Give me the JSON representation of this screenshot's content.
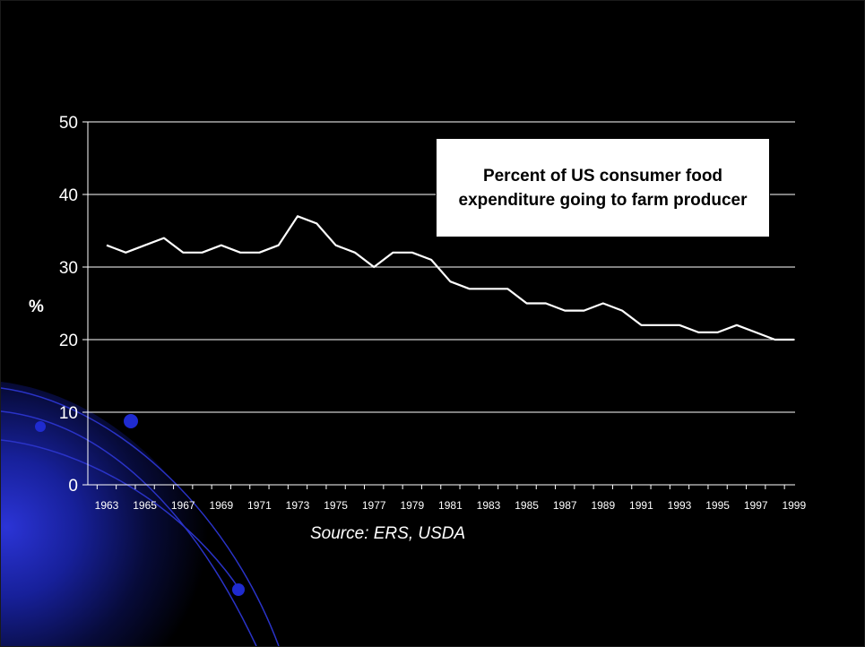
{
  "chart_data": {
    "type": "line",
    "title": "Percent of US consumer food expenditure going to farm producer",
    "xlabel": "",
    "ylabel": "%",
    "source": "Source: ERS, USDA",
    "x": [
      1963,
      1964,
      1965,
      1966,
      1967,
      1968,
      1969,
      1970,
      1971,
      1972,
      1973,
      1974,
      1975,
      1976,
      1977,
      1978,
      1979,
      1980,
      1981,
      1982,
      1983,
      1984,
      1985,
      1986,
      1987,
      1988,
      1989,
      1990,
      1991,
      1992,
      1993,
      1994,
      1995,
      1996,
      1997,
      1998,
      1999
    ],
    "x_tick_labels": [
      "1963",
      "1965",
      "1967",
      "1969",
      "1971",
      "1973",
      "1975",
      "1977",
      "1979",
      "1981",
      "1983",
      "1985",
      "1987",
      "1989",
      "1991",
      "1993",
      "1995",
      "1997",
      "1999"
    ],
    "series": [
      {
        "values": [
          33,
          32,
          33,
          34,
          32,
          32,
          33,
          32,
          32,
          33,
          37,
          36,
          33,
          32,
          30,
          32,
          32,
          31,
          28,
          27,
          27,
          27,
          25,
          25,
          24,
          24,
          25,
          24,
          22,
          22,
          22,
          21,
          21,
          22,
          21,
          20,
          20
        ]
      }
    ],
    "y_ticks": [
      0,
      10,
      20,
      30,
      40,
      50
    ],
    "ylim": [
      0,
      50
    ],
    "grid": true,
    "line_color": "#ffffff",
    "background": "#000000"
  }
}
